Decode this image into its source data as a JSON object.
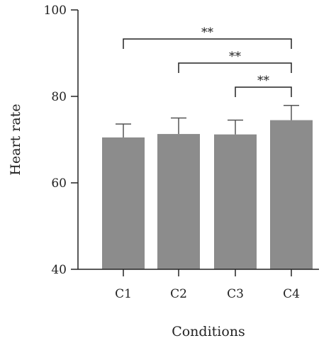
{
  "chart_data": {
    "type": "bar",
    "title": "",
    "xlabel": "Conditions",
    "ylabel": "Heart rate",
    "categories": [
      "C1",
      "C2",
      "C3",
      "C4"
    ],
    "values": [
      70.5,
      71.3,
      71.2,
      74.5
    ],
    "errors": [
      3.1,
      3.7,
      3.3,
      3.4
    ],
    "ylim": [
      40,
      100
    ],
    "yticks": [
      40,
      60,
      80,
      100
    ],
    "bar_color": "#8c8c8c",
    "grid": false,
    "significance": [
      {
        "from": "C1",
        "to": "C4",
        "label": "**"
      },
      {
        "from": "C2",
        "to": "C4",
        "label": "**"
      },
      {
        "from": "C3",
        "to": "C4",
        "label": "**"
      }
    ]
  }
}
